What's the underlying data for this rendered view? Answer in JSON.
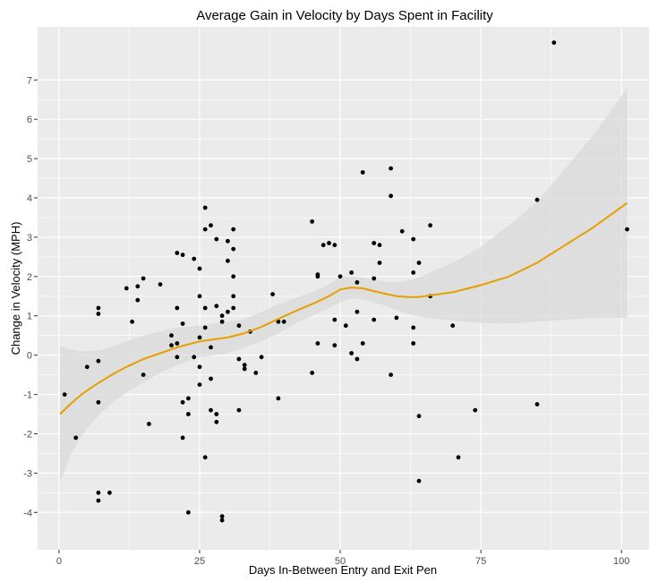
{
  "chart_data": {
    "type": "scatter",
    "title": "Average Gain in Velocity by Days Spent in Facility",
    "xlabel": "Days In-Between Entry and Exit Pen",
    "ylabel": "Change in Velocity (MPH)",
    "xlim": [
      -3.8,
      104.9
    ],
    "ylim": [
      -4.95,
      8.35
    ],
    "x_ticks": [
      0,
      25,
      50,
      75,
      100
    ],
    "x_tick_labels": [
      "0",
      "25",
      "50",
      "75",
      "100"
    ],
    "y_ticks": [
      -4,
      -3,
      -2,
      -1,
      0,
      1,
      2,
      3,
      4,
      5,
      6,
      7
    ],
    "y_tick_labels": [
      "-4",
      "-3",
      "-2",
      "-1",
      "0",
      "1",
      "2",
      "3",
      "4",
      "5",
      "6",
      "7"
    ],
    "grid": true,
    "legend": "none",
    "colors": {
      "panel_background": "#ebebeb",
      "grid_major": "#ffffff",
      "points": "#000000",
      "smooth_line": "#e69f00",
      "confidence_band": "#d9d9d9"
    },
    "series": [
      {
        "points": [
          [
            1,
            -1.0
          ],
          [
            3,
            -2.1
          ],
          [
            5,
            -0.3
          ],
          [
            7,
            1.2
          ],
          [
            7,
            1.05
          ],
          [
            7,
            -0.15
          ],
          [
            7,
            -1.2
          ],
          [
            7,
            -3.5
          ],
          [
            7,
            -3.7
          ],
          [
            9,
            -3.5
          ],
          [
            12,
            1.7
          ],
          [
            13,
            0.85
          ],
          [
            14,
            1.75
          ],
          [
            14,
            1.4
          ],
          [
            15,
            1.95
          ],
          [
            15,
            -0.5
          ],
          [
            16,
            -1.75
          ],
          [
            18,
            1.8
          ],
          [
            20,
            0.5
          ],
          [
            20,
            0.25
          ],
          [
            21,
            2.6
          ],
          [
            21,
            1.2
          ],
          [
            21,
            0.3
          ],
          [
            21,
            -0.05
          ],
          [
            22,
            2.55
          ],
          [
            22,
            0.8
          ],
          [
            22,
            -1.2
          ],
          [
            22,
            -2.1
          ],
          [
            23,
            -1.1
          ],
          [
            23,
            -1.5
          ],
          [
            23,
            -4.0
          ],
          [
            24,
            2.45
          ],
          [
            24,
            -0.05
          ],
          [
            25,
            2.2
          ],
          [
            25,
            1.5
          ],
          [
            25,
            0.45
          ],
          [
            25,
            -0.3
          ],
          [
            25,
            -0.75
          ],
          [
            26,
            3.75
          ],
          [
            26,
            3.2
          ],
          [
            26,
            1.2
          ],
          [
            26,
            0.7
          ],
          [
            26,
            -2.6
          ],
          [
            27,
            3.3
          ],
          [
            27,
            0.2
          ],
          [
            27,
            -0.6
          ],
          [
            27,
            -1.4
          ],
          [
            28,
            2.95
          ],
          [
            28,
            1.25
          ],
          [
            28,
            -1.5
          ],
          [
            28,
            -1.7
          ],
          [
            29,
            -4.1
          ],
          [
            29,
            -4.2
          ],
          [
            29,
            1.0
          ],
          [
            29,
            0.85
          ],
          [
            30,
            2.9
          ],
          [
            30,
            2.4
          ],
          [
            30,
            1.1
          ],
          [
            31,
            3.2
          ],
          [
            31,
            2.7
          ],
          [
            31,
            2.0
          ],
          [
            31,
            1.5
          ],
          [
            31,
            1.2
          ],
          [
            32,
            0.75
          ],
          [
            32,
            -0.1
          ],
          [
            32,
            -1.4
          ],
          [
            33,
            -0.25
          ],
          [
            33,
            -0.35
          ],
          [
            34,
            0.6
          ],
          [
            35,
            -0.45
          ],
          [
            36,
            -0.05
          ],
          [
            38,
            1.55
          ],
          [
            39,
            0.85
          ],
          [
            39,
            -1.1
          ],
          [
            40,
            0.85
          ],
          [
            45,
            3.4
          ],
          [
            45,
            -0.45
          ],
          [
            46,
            2.05
          ],
          [
            46,
            2.0
          ],
          [
            46,
            0.3
          ],
          [
            47,
            2.8
          ],
          [
            48,
            2.85
          ],
          [
            49,
            2.8
          ],
          [
            49,
            0.9
          ],
          [
            49,
            0.25
          ],
          [
            50,
            2.0
          ],
          [
            51,
            0.75
          ],
          [
            52,
            2.1
          ],
          [
            52,
            0.05
          ],
          [
            53,
            1.85
          ],
          [
            53,
            1.1
          ],
          [
            53,
            -0.1
          ],
          [
            54,
            4.65
          ],
          [
            54,
            0.3
          ],
          [
            56,
            2.85
          ],
          [
            56,
            1.95
          ],
          [
            56,
            0.9
          ],
          [
            57,
            2.8
          ],
          [
            57,
            2.35
          ],
          [
            59,
            4.75
          ],
          [
            59,
            4.05
          ],
          [
            59,
            -0.5
          ],
          [
            60,
            0.95
          ],
          [
            61,
            3.15
          ],
          [
            63,
            2.95
          ],
          [
            63,
            2.1
          ],
          [
            63,
            0.7
          ],
          [
            63,
            0.3
          ],
          [
            64,
            2.35
          ],
          [
            64,
            -1.55
          ],
          [
            64,
            -3.2
          ],
          [
            66,
            3.3
          ],
          [
            66,
            1.5
          ],
          [
            70,
            0.75
          ],
          [
            71,
            -2.6
          ],
          [
            74,
            -1.4
          ],
          [
            85,
            3.95
          ],
          [
            85,
            -1.25
          ],
          [
            88,
            7.95
          ],
          [
            101,
            3.2
          ]
        ]
      }
    ],
    "smooth": {
      "method": "loess",
      "x": [
        0.2,
        2,
        4,
        6,
        8,
        10,
        12,
        15,
        18,
        21,
        25,
        30,
        33,
        36,
        39,
        42,
        45,
        48,
        50,
        52,
        54,
        56,
        58,
        60,
        62,
        64,
        66,
        70,
        75,
        80,
        85,
        90,
        95,
        101
      ],
      "y": [
        -1.5,
        -1.25,
        -1.0,
        -0.8,
        -0.62,
        -0.45,
        -0.3,
        -0.1,
        0.05,
        0.2,
        0.35,
        0.45,
        0.56,
        0.72,
        0.92,
        1.12,
        1.3,
        1.5,
        1.67,
        1.72,
        1.7,
        1.63,
        1.56,
        1.5,
        1.48,
        1.48,
        1.52,
        1.6,
        1.78,
        2.0,
        2.35,
        2.8,
        3.25,
        3.87
      ],
      "lower": [
        -3.25,
        -2.55,
        -2.05,
        -1.7,
        -1.4,
        -1.15,
        -0.95,
        -0.7,
        -0.45,
        -0.25,
        -0.05,
        0.05,
        0.2,
        0.35,
        0.55,
        0.8,
        1.0,
        1.2,
        1.35,
        1.45,
        1.42,
        1.35,
        1.25,
        1.15,
        1.05,
        0.98,
        0.93,
        0.88,
        0.82,
        0.8,
        0.85,
        0.9,
        0.95,
        0.95
      ],
      "upper": [
        0.25,
        0.15,
        0.1,
        0.1,
        0.15,
        0.25,
        0.35,
        0.5,
        0.6,
        0.7,
        0.75,
        0.85,
        0.92,
        1.1,
        1.3,
        1.45,
        1.6,
        1.8,
        2.0,
        2.0,
        1.98,
        1.92,
        1.87,
        1.85,
        1.9,
        1.98,
        2.1,
        2.35,
        2.75,
        3.3,
        3.9,
        4.75,
        5.6,
        6.8
      ]
    }
  }
}
